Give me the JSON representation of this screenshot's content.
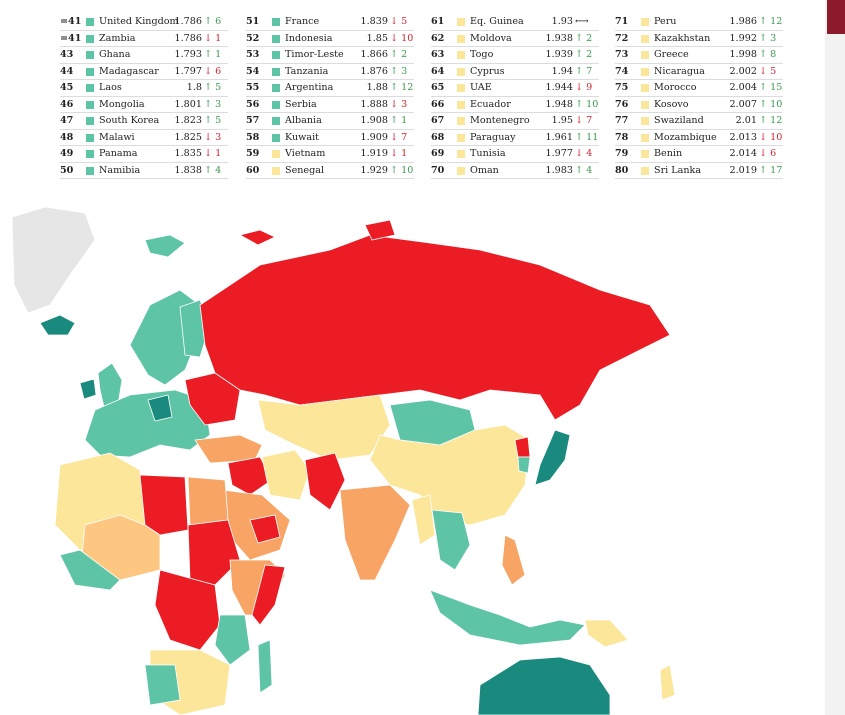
{
  "colors": {
    "very_high": "#5ec4a6",
    "high": "#fbe69a",
    "medium": "#fdc782",
    "low": "#f7a465",
    "very_low": "#ec1c24",
    "top_tier": "#1a8a7e",
    "no_data": "#e6e6e6"
  },
  "columns": [
    [
      {
        "rank": "=41",
        "country": "United Kingdom",
        "score": "1.786",
        "dir": "up",
        "change": "6",
        "tier": "very_high"
      },
      {
        "rank": "=41",
        "country": "Zambia",
        "score": "1.786",
        "dir": "down",
        "change": "1",
        "tier": "very_high"
      },
      {
        "rank": "43",
        "country": "Ghana",
        "score": "1.793",
        "dir": "up",
        "change": "1",
        "tier": "very_high"
      },
      {
        "rank": "44",
        "country": "Madagascar",
        "score": "1.797",
        "dir": "down",
        "change": "6",
        "tier": "very_high"
      },
      {
        "rank": "45",
        "country": "Laos",
        "score": "1.8",
        "dir": "up",
        "change": "5",
        "tier": "very_high"
      },
      {
        "rank": "46",
        "country": "Mongolia",
        "score": "1.801",
        "dir": "up",
        "change": "3",
        "tier": "very_high"
      },
      {
        "rank": "47",
        "country": "South Korea",
        "score": "1.823",
        "dir": "up",
        "change": "5",
        "tier": "very_high"
      },
      {
        "rank": "48",
        "country": "Malawi",
        "score": "1.825",
        "dir": "down",
        "change": "3",
        "tier": "very_high"
      },
      {
        "rank": "49",
        "country": "Panama",
        "score": "1.835",
        "dir": "down",
        "change": "1",
        "tier": "very_high"
      },
      {
        "rank": "50",
        "country": "Namibia",
        "score": "1.838",
        "dir": "up",
        "change": "4",
        "tier": "very_high"
      }
    ],
    [
      {
        "rank": "51",
        "country": "France",
        "score": "1.839",
        "dir": "down",
        "change": "5",
        "tier": "very_high"
      },
      {
        "rank": "52",
        "country": "Indonesia",
        "score": "1.85",
        "dir": "down",
        "change": "10",
        "tier": "very_high"
      },
      {
        "rank": "53",
        "country": "Timor-Leste",
        "score": "1.866",
        "dir": "up",
        "change": "2",
        "tier": "very_high"
      },
      {
        "rank": "54",
        "country": "Tanzania",
        "score": "1.876",
        "dir": "up",
        "change": "3",
        "tier": "very_high"
      },
      {
        "rank": "55",
        "country": "Argentina",
        "score": "1.88",
        "dir": "up",
        "change": "12",
        "tier": "very_high"
      },
      {
        "rank": "56",
        "country": "Serbia",
        "score": "1.888",
        "dir": "down",
        "change": "3",
        "tier": "very_high"
      },
      {
        "rank": "57",
        "country": "Albania",
        "score": "1.908",
        "dir": "up",
        "change": "1",
        "tier": "very_high"
      },
      {
        "rank": "58",
        "country": "Kuwait",
        "score": "1.909",
        "dir": "down",
        "change": "7",
        "tier": "very_high"
      },
      {
        "rank": "59",
        "country": "Vietnam",
        "score": "1.919",
        "dir": "down",
        "change": "1",
        "tier": "high"
      },
      {
        "rank": "60",
        "country": "Senegal",
        "score": "1.929",
        "dir": "up",
        "change": "10",
        "tier": "high"
      }
    ],
    [
      {
        "rank": "61",
        "country": "Eq. Guinea",
        "score": "1.93",
        "dir": "same",
        "change": "",
        "tier": "high"
      },
      {
        "rank": "62",
        "country": "Moldova",
        "score": "1.938",
        "dir": "up",
        "change": "2",
        "tier": "high"
      },
      {
        "rank": "63",
        "country": "Togo",
        "score": "1.939",
        "dir": "up",
        "change": "2",
        "tier": "high"
      },
      {
        "rank": "64",
        "country": "Cyprus",
        "score": "1.94",
        "dir": "up",
        "change": "7",
        "tier": "high"
      },
      {
        "rank": "65",
        "country": "UAE",
        "score": "1.944",
        "dir": "down",
        "change": "9",
        "tier": "high"
      },
      {
        "rank": "66",
        "country": "Ecuador",
        "score": "1.948",
        "dir": "up",
        "change": "10",
        "tier": "high"
      },
      {
        "rank": "67",
        "country": "Montenegro",
        "score": "1.95",
        "dir": "down",
        "change": "7",
        "tier": "high"
      },
      {
        "rank": "68",
        "country": "Paraguay",
        "score": "1.961",
        "dir": "up",
        "change": "11",
        "tier": "high"
      },
      {
        "rank": "69",
        "country": "Tunisia",
        "score": "1.977",
        "dir": "down",
        "change": "4",
        "tier": "high"
      },
      {
        "rank": "70",
        "country": "Oman",
        "score": "1.983",
        "dir": "up",
        "change": "4",
        "tier": "high"
      }
    ],
    [
      {
        "rank": "71",
        "country": "Peru",
        "score": "1.986",
        "dir": "up",
        "change": "12",
        "tier": "high"
      },
      {
        "rank": "72",
        "country": "Kazakhstan",
        "score": "1.992",
        "dir": "up",
        "change": "3",
        "tier": "high"
      },
      {
        "rank": "73",
        "country": "Greece",
        "score": "1.998",
        "dir": "up",
        "change": "8",
        "tier": "high"
      },
      {
        "rank": "74",
        "country": "Nicaragua",
        "score": "2.002",
        "dir": "down",
        "change": "5",
        "tier": "high"
      },
      {
        "rank": "75",
        "country": "Morocco",
        "score": "2.004",
        "dir": "up",
        "change": "15",
        "tier": "high"
      },
      {
        "rank": "76",
        "country": "Kosovo",
        "score": "2.007",
        "dir": "up",
        "change": "10",
        "tier": "high"
      },
      {
        "rank": "77",
        "country": "Swaziland",
        "score": "2.01",
        "dir": "up",
        "change": "12",
        "tier": "high"
      },
      {
        "rank": "78",
        "country": "Mozambique",
        "score": "2.013",
        "dir": "down",
        "change": "10",
        "tier": "high"
      },
      {
        "rank": "79",
        "country": "Benin",
        "score": "2.014",
        "dir": "down",
        "change": "6",
        "tier": "high"
      },
      {
        "rank": "80",
        "country": "Sri Lanka",
        "score": "2.019",
        "dir": "up",
        "change": "17",
        "tier": "high"
      }
    ]
  ]
}
